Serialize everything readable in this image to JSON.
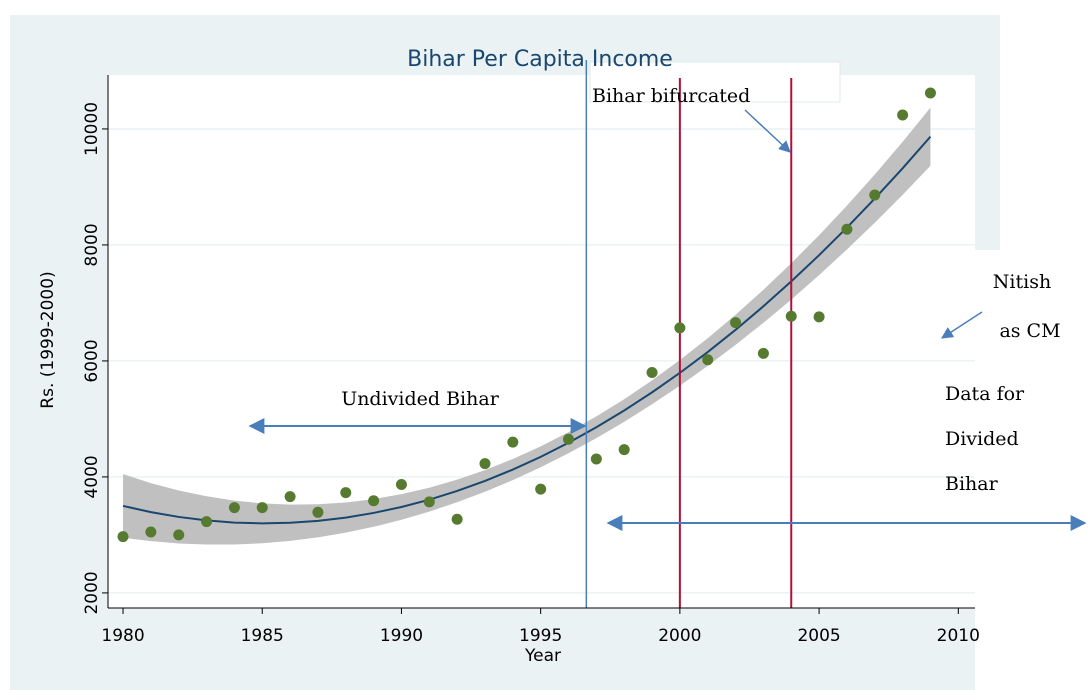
{
  "chart_data": {
    "type": "scatter",
    "title": "Bihar Per Capita Income",
    "x_label": "Year",
    "y_label": "Rs. (1999-2000)",
    "x": [
      1980,
      1981,
      1982,
      1983,
      1984,
      1985,
      1986,
      1987,
      1988,
      1989,
      1990,
      1991,
      1992,
      1993,
      1994,
      1995,
      1996,
      1997,
      1998,
      1999,
      2000,
      2001,
      2002,
      2003,
      2004,
      2005,
      2006,
      2007,
      2008,
      2009
    ],
    "values": [
      2970,
      3050,
      3000,
      3230,
      3470,
      3470,
      3660,
      3390,
      3730,
      3590,
      3870,
      3570,
      3270,
      4230,
      4600,
      3790,
      4650,
      4310,
      4470,
      5800,
      6570,
      6020,
      6660,
      6130,
      6770,
      6760,
      8270,
      8860,
      10240,
      10620
    ],
    "color": "#567a30",
    "fit": [
      3500,
      3393,
      3310,
      3250,
      3213,
      3200,
      3210,
      3243,
      3299,
      3379,
      3482,
      3608,
      3758,
      3931,
      4127,
      4346,
      4590,
      4856,
      5145,
      5458,
      5794,
      6153,
      6536,
      6942,
      7371,
      7823,
      8300,
      8799,
      9321,
      9867
    ],
    "fit_color": "#1a476f",
    "ci_lower": [
      2951,
      2892,
      2853,
      2834,
      2835,
      2856,
      2897,
      2958,
      3039,
      3140,
      3261,
      3402,
      3563,
      3744,
      3945,
      4166,
      4408,
      4669,
      4950,
      5252,
      5573,
      5914,
      6276,
      6657,
      7058,
      7479,
      7922,
      8383,
      8864,
      9366
    ],
    "ci_upper": [
      4049,
      3894,
      3767,
      3666,
      3591,
      3544,
      3523,
      3528,
      3559,
      3618,
      3703,
      3814,
      3953,
      4118,
      4309,
      4526,
      4772,
      5043,
      5340,
      5664,
      6015,
      6392,
      6796,
      7227,
      7684,
      8167,
      8678,
      9215,
      9778,
      10368
    ],
    "ci_color": "#c0c0c0",
    "xlim": [
      1979.46,
      2010.6
    ],
    "ylim": [
      1740,
      10930
    ],
    "xticks": [
      1980,
      1985,
      1990,
      1995,
      2000,
      2005,
      2010
    ],
    "yticks": [
      2000,
      4000,
      6000,
      8000,
      10000
    ],
    "grid": true,
    "vlines": [
      {
        "value": 1996.64,
        "color": "#4a7ebb"
      },
      {
        "value": 2000,
        "color": "#b0103a"
      },
      {
        "value": 2004,
        "color": "#b0103a"
      }
    ],
    "annotations": [
      "Bihar bifurcated",
      "Nitish",
      "as CM",
      "Undivided Bihar",
      "Data for",
      "Divided",
      "Bihar"
    ]
  }
}
